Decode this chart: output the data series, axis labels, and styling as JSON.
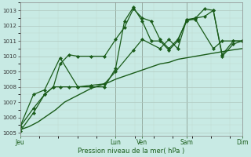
{
  "title": "",
  "xlabel": "Pression niveau de la mer( hPa )",
  "ylim": [
    1004.8,
    1013.5
  ],
  "yticks": [
    1005,
    1006,
    1007,
    1008,
    1009,
    1010,
    1011,
    1012,
    1013
  ],
  "background_color": "#c8eae4",
  "grid_color_major": "#b0c8c0",
  "grid_color_minor": "#c0d8d0",
  "line_color": "#1a5c1a",
  "day_labels": [
    "Jeu",
    "Lun",
    "Ven",
    "Sam",
    "Dim"
  ],
  "day_positions": [
    0,
    0.43,
    0.55,
    0.75,
    1.0
  ],
  "vline_positions": [
    0,
    0.43,
    0.55,
    0.75,
    1.0
  ],
  "lines": [
    {
      "xn": [
        0.0,
        0.04,
        0.08,
        0.12,
        0.16,
        0.2,
        0.24,
        0.28,
        0.32,
        0.36,
        0.4,
        0.43,
        0.47,
        0.51,
        0.55,
        0.59,
        0.63,
        0.67,
        0.71,
        0.75,
        0.79,
        0.83,
        0.87,
        0.91,
        0.95,
        1.0
      ],
      "y": [
        1005.2,
        1005.4,
        1005.7,
        1006.1,
        1006.5,
        1007.0,
        1007.3,
        1007.6,
        1007.9,
        1008.1,
        1008.3,
        1008.5,
        1008.7,
        1008.9,
        1009.1,
        1009.3,
        1009.5,
        1009.6,
        1009.8,
        1009.9,
        1010.0,
        1010.1,
        1010.2,
        1010.3,
        1010.4,
        1010.5
      ],
      "marker": null,
      "linewidth": 1.0
    },
    {
      "xn": [
        0.0,
        0.06,
        0.11,
        0.15,
        0.18,
        0.22,
        0.26,
        0.32,
        0.38,
        0.43,
        0.47,
        0.51,
        0.55,
        0.59,
        0.63,
        0.67,
        0.71,
        0.75,
        0.79,
        0.83,
        0.87,
        0.91,
        0.96,
        1.0
      ],
      "y": [
        1005.4,
        1006.6,
        1007.5,
        1008.0,
        1009.5,
        1010.1,
        1010.0,
        1010.0,
        1010.0,
        1011.1,
        1011.9,
        1013.1,
        1012.5,
        1012.3,
        1011.1,
        1010.5,
        1011.1,
        1012.3,
        1012.5,
        1013.1,
        1013.0,
        1010.1,
        1011.0,
        1011.0
      ],
      "marker": "D",
      "linewidth": 0.9
    },
    {
      "xn": [
        0.0,
        0.06,
        0.11,
        0.15,
        0.18,
        0.22,
        0.26,
        0.32,
        0.38,
        0.43,
        0.47,
        0.51,
        0.55,
        0.59,
        0.63,
        0.67,
        0.71,
        0.75,
        0.79,
        0.83,
        0.87,
        0.91,
        0.96,
        1.0
      ],
      "y": [
        1005.1,
        1006.3,
        1007.5,
        1008.0,
        1008.0,
        1008.0,
        1008.0,
        1008.0,
        1008.0,
        1009.2,
        1012.3,
        1013.2,
        1012.3,
        1011.0,
        1011.0,
        1010.4,
        1011.0,
        1012.4,
        1012.5,
        1012.6,
        1013.0,
        1010.0,
        1010.8,
        1011.0
      ],
      "marker": "D",
      "linewidth": 0.9
    },
    {
      "xn": [
        0.0,
        0.06,
        0.11,
        0.18,
        0.26,
        0.32,
        0.38,
        0.43,
        0.51,
        0.55,
        0.63,
        0.67,
        0.71,
        0.75,
        0.79,
        0.87,
        0.91,
        0.96,
        1.0
      ],
      "y": [
        1005.4,
        1007.5,
        1007.8,
        1009.9,
        1008.0,
        1008.1,
        1008.2,
        1009.0,
        1010.4,
        1011.1,
        1010.5,
        1011.1,
        1010.5,
        1012.4,
        1012.4,
        1010.5,
        1011.0,
        1011.0,
        1011.0
      ],
      "marker": "D",
      "linewidth": 0.9
    }
  ]
}
